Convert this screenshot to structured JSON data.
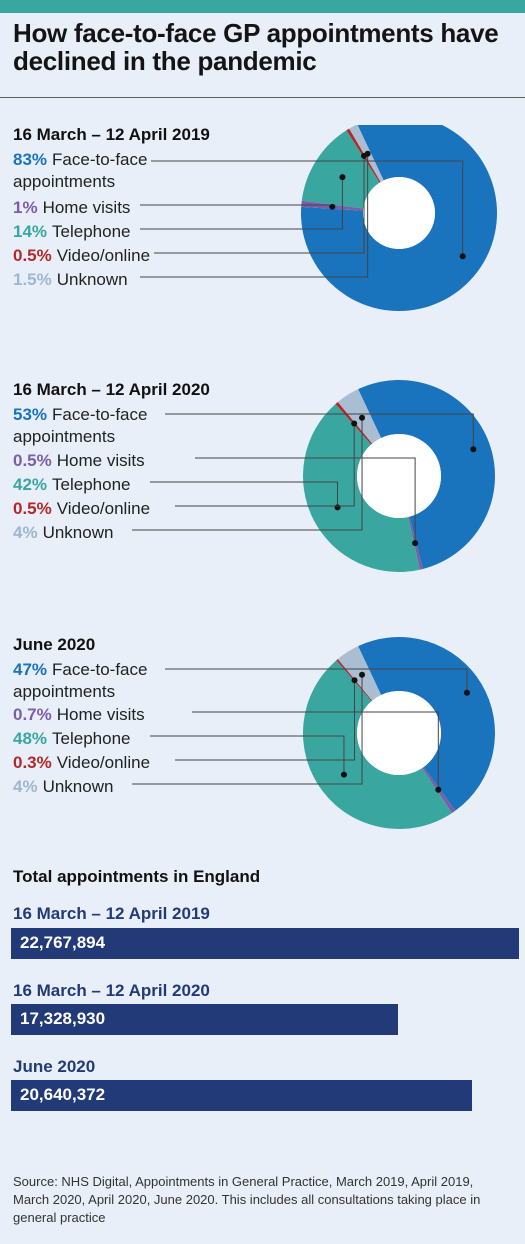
{
  "title": "How face-to-face GP appointments have declined in the pandemic",
  "colors": {
    "face_to_face": "#1a73bd",
    "home_visits": "#7b5ea7",
    "telephone": "#3aa6a0",
    "video_online": "#b42828",
    "unknown": "#a9bdd3",
    "bar": "#223a78"
  },
  "chart_data": [
    {
      "type": "pie",
      "title": "16 March – 12 April 2019",
      "categories": [
        "Face-to-face appointments",
        "Home visits",
        "Telephone",
        "Video/online",
        "Unknown"
      ],
      "values": [
        83,
        1,
        14,
        0.5,
        1.5
      ],
      "labels": [
        "83%",
        "1%",
        "14%",
        "0.5%",
        "1.5%"
      ]
    },
    {
      "type": "pie",
      "title": "16 March – 12 April 2020",
      "categories": [
        "Face-to-face appointments",
        "Home visits",
        "Telephone",
        "Video/online",
        "Unknown"
      ],
      "values": [
        53,
        0.5,
        42,
        0.5,
        4
      ],
      "labels": [
        "53%",
        "0.5%",
        "42%",
        "0.5%",
        "4%"
      ]
    },
    {
      "type": "pie",
      "title": "June 2020",
      "categories": [
        "Face-to-face appointments",
        "Home visits",
        "Telephone",
        "Video/online",
        "Unknown"
      ],
      "values": [
        47,
        0.7,
        48,
        0.3,
        4
      ],
      "labels": [
        "47%",
        "0.7%",
        "48%",
        "0.3%",
        "4%"
      ]
    },
    {
      "type": "bar",
      "title": "Total appointments in England",
      "categories": [
        "16 March – 12 April 2019",
        "16 March – 12 April 2020",
        "June 2020"
      ],
      "values": [
        22767894,
        17328930,
        20640372
      ],
      "value_labels": [
        "22,767,894",
        "17,328,930",
        "20,640,372"
      ]
    }
  ],
  "legend": {
    "face_line1": "Face-to-face",
    "face_line2": "appointments",
    "home": "Home visits",
    "telephone": "Telephone",
    "video": "Video/online",
    "unknown": "Unknown"
  },
  "source": "Source: NHS Digital, Appointments in General Practice, March 2019, April 2019, March 2020, April 2020, June 2020. This includes all consultations taking place in general practice"
}
